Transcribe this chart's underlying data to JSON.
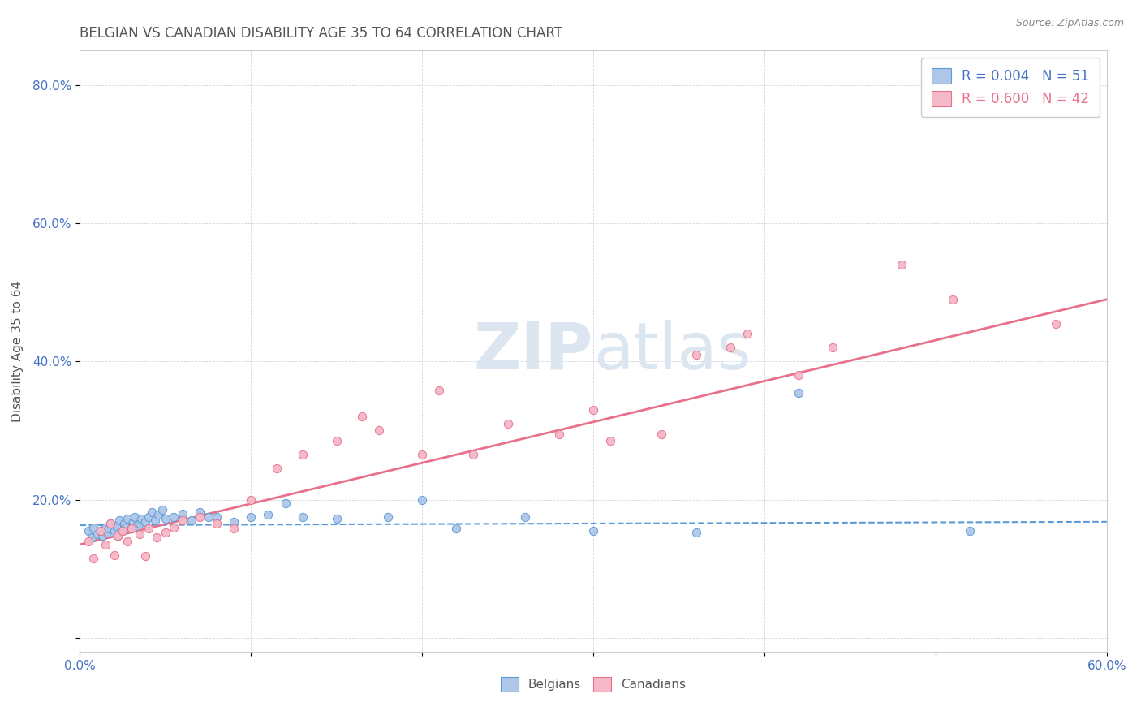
{
  "title": "BELGIAN VS CANADIAN DISABILITY AGE 35 TO 64 CORRELATION CHART",
  "source_text": "Source: ZipAtlas.com",
  "ylabel": "Disability Age 35 to 64",
  "xmin": 0.0,
  "xmax": 0.6,
  "ymin": -0.02,
  "ymax": 0.85,
  "xticks": [
    0.0,
    0.1,
    0.2,
    0.3,
    0.4,
    0.5,
    0.6
  ],
  "yticks": [
    0.0,
    0.2,
    0.4,
    0.6,
    0.8
  ],
  "xtick_labels": [
    "0.0%",
    "",
    "",
    "",
    "",
    "",
    "60.0%"
  ],
  "ytick_labels": [
    "",
    "20.0%",
    "40.0%",
    "60.0%",
    "80.0%"
  ],
  "belgian_R": 0.004,
  "belgian_N": 51,
  "canadian_R": 0.6,
  "canadian_N": 42,
  "belgian_color": "#aec6e8",
  "canadian_color": "#f5b8c8",
  "belgian_line_color": "#5b9bd5",
  "canadian_line_color": "#e8708a",
  "watermark_color": "#dce6f0",
  "legend_belgian_color": "#4472c4",
  "legend_canadian_color": "#e8708a",
  "belgians_x": [
    0.005,
    0.007,
    0.008,
    0.01,
    0.012,
    0.013,
    0.015,
    0.016,
    0.017,
    0.018,
    0.02,
    0.021,
    0.022,
    0.023,
    0.025,
    0.026,
    0.027,
    0.028,
    0.03,
    0.031,
    0.032,
    0.033,
    0.035,
    0.036,
    0.038,
    0.04,
    0.042,
    0.044,
    0.046,
    0.048,
    0.05,
    0.055,
    0.06,
    0.065,
    0.07,
    0.075,
    0.08,
    0.09,
    0.1,
    0.11,
    0.12,
    0.13,
    0.15,
    0.18,
    0.2,
    0.22,
    0.26,
    0.3,
    0.36,
    0.42,
    0.52
  ],
  "belgians_y": [
    0.155,
    0.145,
    0.16,
    0.15,
    0.155,
    0.148,
    0.16,
    0.152,
    0.158,
    0.165,
    0.155,
    0.162,
    0.148,
    0.17,
    0.155,
    0.165,
    0.16,
    0.172,
    0.158,
    0.168,
    0.175,
    0.162,
    0.165,
    0.172,
    0.168,
    0.175,
    0.182,
    0.17,
    0.178,
    0.185,
    0.172,
    0.175,
    0.18,
    0.17,
    0.182,
    0.175,
    0.175,
    0.168,
    0.175,
    0.178,
    0.195,
    0.175,
    0.172,
    0.175,
    0.2,
    0.158,
    0.175,
    0.155,
    0.152,
    0.355,
    0.155
  ],
  "canadians_x": [
    0.005,
    0.008,
    0.012,
    0.015,
    0.018,
    0.02,
    0.022,
    0.025,
    0.028,
    0.03,
    0.035,
    0.038,
    0.04,
    0.045,
    0.05,
    0.055,
    0.06,
    0.07,
    0.08,
    0.09,
    0.1,
    0.115,
    0.13,
    0.15,
    0.165,
    0.175,
    0.2,
    0.21,
    0.23,
    0.25,
    0.28,
    0.3,
    0.31,
    0.34,
    0.36,
    0.38,
    0.39,
    0.42,
    0.44,
    0.48,
    0.51,
    0.57
  ],
  "canadians_y": [
    0.14,
    0.115,
    0.155,
    0.135,
    0.165,
    0.12,
    0.148,
    0.155,
    0.14,
    0.158,
    0.15,
    0.118,
    0.158,
    0.145,
    0.152,
    0.16,
    0.17,
    0.175,
    0.165,
    0.158,
    0.2,
    0.245,
    0.265,
    0.285,
    0.32,
    0.3,
    0.265,
    0.358,
    0.265,
    0.31,
    0.295,
    0.33,
    0.285,
    0.295,
    0.41,
    0.42,
    0.44,
    0.38,
    0.42,
    0.54,
    0.49,
    0.455
  ],
  "belgian_line_start_y": 0.163,
  "belgian_line_end_y": 0.168,
  "canadian_line_start_y": 0.135,
  "canadian_line_end_y": 0.49
}
